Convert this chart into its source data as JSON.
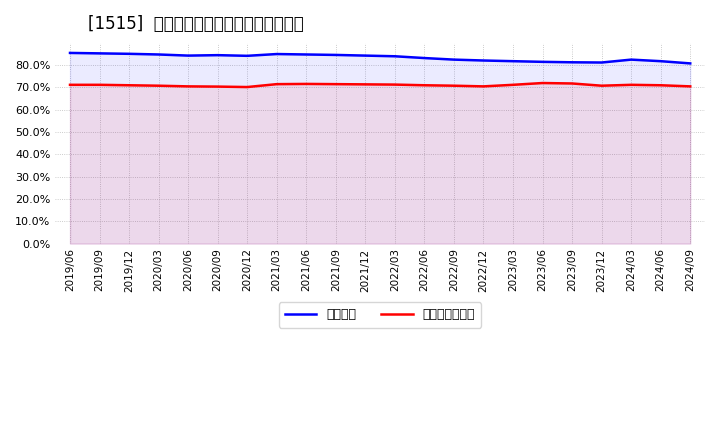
{
  "title": "[1515]  固定比率、固定長期適合率の推移",
  "x_labels": [
    "2019/06",
    "2019/09",
    "2019/12",
    "2020/03",
    "2020/06",
    "2020/09",
    "2020/12",
    "2021/03",
    "2021/06",
    "2021/09",
    "2021/12",
    "2022/03",
    "2022/06",
    "2022/09",
    "2022/12",
    "2023/03",
    "2023/06",
    "2023/09",
    "2023/12",
    "2024/03",
    "2024/06",
    "2024/09"
  ],
  "fixed_ratio": [
    85.5,
    85.3,
    85.1,
    84.8,
    84.3,
    84.5,
    84.2,
    85.0,
    84.8,
    84.6,
    84.3,
    84.0,
    83.2,
    82.5,
    82.1,
    81.8,
    81.5,
    81.3,
    81.2,
    82.5,
    81.8,
    80.8
  ],
  "fixed_long_ratio": [
    71.2,
    71.2,
    71.0,
    70.8,
    70.5,
    70.4,
    70.2,
    71.5,
    71.6,
    71.5,
    71.4,
    71.3,
    71.0,
    70.8,
    70.5,
    71.2,
    72.0,
    71.8,
    70.8,
    71.2,
    71.0,
    70.5
  ],
  "line1_color": "#0000ff",
  "line2_color": "#ff0000",
  "bg_color": "#ffffff",
  "plot_bg_color": "#ffffff",
  "grid_color": "#aaaaaa",
  "title_color": "#000000",
  "ylabel_ticks": [
    "0.0%",
    "10.0%",
    "20.0%",
    "30.0%",
    "40.0%",
    "50.0%",
    "60.0%",
    "70.0%",
    "80.0%"
  ],
  "ylim": [
    0,
    90
  ],
  "legend_label1": "固定比率",
  "legend_label2": "固定長期適合率"
}
